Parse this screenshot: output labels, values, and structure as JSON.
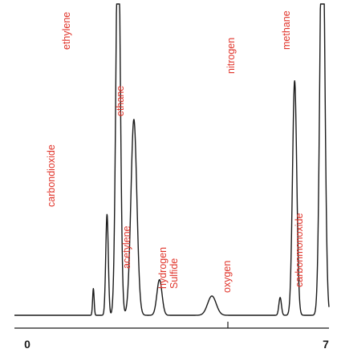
{
  "chart_data": {
    "type": "line",
    "title": "",
    "xlabel": "",
    "ylabel": "",
    "xlim": [
      0,
      7
    ],
    "ylim": [
      0,
      100
    ],
    "x_ticks": [
      {
        "value": 0,
        "label": "0"
      },
      {
        "value": 7,
        "label": "7"
      }
    ],
    "grid": false,
    "colors": {
      "trace": "#1a1a1a",
      "label": "#e0342a",
      "axis": "#1a1a1a"
    },
    "peaks": [
      {
        "name": "",
        "x": 1.55,
        "height": 9.0,
        "width": 0.018
      },
      {
        "name": "carbondioxide",
        "x": 1.87,
        "height": 34.0,
        "width": 0.03
      },
      {
        "name": "ethylene",
        "x": 2.13,
        "height": 140.0,
        "width": 0.05
      },
      {
        "name": "ethane",
        "x": 2.5,
        "height": 66.0,
        "width": 0.07
      },
      {
        "name": "acetylene",
        "x": 3.1,
        "height": 12.0,
        "width": 0.06
      },
      {
        "name": "hydrogen\nSulfide",
        "x": 4.33,
        "height": 6.5,
        "width": 0.1
      },
      {
        "name": "oxygen",
        "x": 5.93,
        "height": 6.0,
        "width": 0.03
      },
      {
        "name": "nitrogen",
        "x": 6.27,
        "height": 79.0,
        "width": 0.05
      },
      {
        "name": "methane",
        "x": 6.92,
        "height": 150.0,
        "width": 0.055
      },
      {
        "name": "carbonmonoxide",
        "x": 7.55,
        "height": 7.5,
        "width": 0.05
      }
    ]
  }
}
